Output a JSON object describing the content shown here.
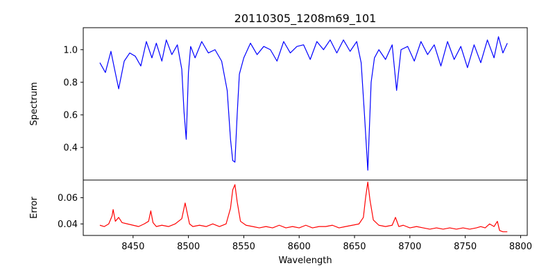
{
  "chart_data": [
    {
      "type": "line",
      "title": "20110305_1208m69_101",
      "ylabel": "Spectrum",
      "xlabel": "",
      "xlim": [
        8405,
        8806
      ],
      "ylim": [
        0.2,
        1.135
      ],
      "yticks": [
        0.4,
        0.6,
        0.8,
        1.0
      ],
      "yticklabels": [
        "0.4",
        "0.6",
        "0.8",
        "1.0"
      ],
      "color": "#0000ff",
      "series": [
        {
          "x": [
            8420,
            8425,
            8430,
            8433,
            8437,
            8442,
            8447,
            8452,
            8457,
            8462,
            8467,
            8471,
            8476,
            8480,
            8485,
            8490,
            8494,
            8496,
            8498,
            8500,
            8502,
            8506,
            8512,
            8518,
            8524,
            8530,
            8535,
            8538,
            8540,
            8542,
            8544,
            8546,
            8550,
            8556,
            8562,
            8568,
            8574,
            8580,
            8586,
            8592,
            8598,
            8604,
            8610,
            8616,
            8622,
            8628,
            8634,
            8640,
            8646,
            8652,
            8656,
            8659,
            8662,
            8665,
            8668,
            8672,
            8678,
            8684,
            8688,
            8692,
            8698,
            8704,
            8710,
            8716,
            8722,
            8728,
            8734,
            8740,
            8746,
            8752,
            8758,
            8764,
            8770,
            8776,
            8780,
            8784,
            8788
          ],
          "y": [
            0.92,
            0.86,
            0.99,
            0.89,
            0.76,
            0.93,
            0.98,
            0.96,
            0.9,
            1.05,
            0.95,
            1.04,
            0.93,
            1.06,
            0.97,
            1.03,
            0.88,
            0.62,
            0.45,
            0.86,
            1.02,
            0.95,
            1.05,
            0.98,
            1.0,
            0.93,
            0.75,
            0.45,
            0.32,
            0.31,
            0.6,
            0.85,
            0.95,
            1.04,
            0.97,
            1.02,
            1.0,
            0.93,
            1.05,
            0.98,
            1.02,
            1.03,
            0.94,
            1.05,
            1.0,
            1.06,
            0.98,
            1.06,
            0.99,
            1.05,
            0.92,
            0.6,
            0.26,
            0.8,
            0.95,
            1.0,
            0.94,
            1.03,
            0.75,
            1.0,
            1.02,
            0.93,
            1.05,
            0.97,
            1.03,
            0.9,
            1.05,
            0.94,
            1.02,
            0.89,
            1.03,
            0.92,
            1.06,
            0.95,
            1.08,
            0.98,
            1.04
          ]
        }
      ]
    },
    {
      "type": "line",
      "title": "",
      "ylabel": "Error",
      "xlabel": "Wavelength",
      "xlim": [
        8405,
        8806
      ],
      "ylim": [
        0.0312,
        0.0735
      ],
      "xticks": [
        8450,
        8500,
        8550,
        8600,
        8650,
        8700,
        8750,
        8800
      ],
      "xticklabels": [
        "8450",
        "8500",
        "8550",
        "8600",
        "8650",
        "8700",
        "8750",
        "8800"
      ],
      "yticks": [
        0.04,
        0.06
      ],
      "yticklabels": [
        "0.04",
        "0.06"
      ],
      "color": "#ff0000",
      "series": [
        {
          "x": [
            8420,
            8424,
            8428,
            8431,
            8432,
            8434,
            8437,
            8440,
            8445,
            8450,
            8455,
            8460,
            8464,
            8466,
            8468,
            8471,
            8476,
            8482,
            8488,
            8494,
            8497,
            8499,
            8501,
            8504,
            8510,
            8516,
            8522,
            8528,
            8534,
            8538,
            8540,
            8542,
            8544,
            8547,
            8552,
            8558,
            8564,
            8570,
            8576,
            8582,
            8588,
            8594,
            8600,
            8606,
            8612,
            8618,
            8624,
            8630,
            8636,
            8642,
            8648,
            8654,
            8658,
            8660,
            8662,
            8664,
            8667,
            8672,
            8678,
            8684,
            8687,
            8690,
            8694,
            8700,
            8706,
            8712,
            8718,
            8724,
            8730,
            8736,
            8742,
            8748,
            8754,
            8760,
            8764,
            8768,
            8772,
            8776,
            8779,
            8781,
            8784,
            8788
          ],
          "y": [
            0.039,
            0.038,
            0.04,
            0.046,
            0.051,
            0.042,
            0.045,
            0.041,
            0.04,
            0.039,
            0.038,
            0.04,
            0.042,
            0.05,
            0.041,
            0.038,
            0.039,
            0.038,
            0.04,
            0.044,
            0.056,
            0.048,
            0.04,
            0.038,
            0.039,
            0.038,
            0.04,
            0.038,
            0.04,
            0.052,
            0.066,
            0.07,
            0.057,
            0.042,
            0.039,
            0.038,
            0.037,
            0.038,
            0.037,
            0.039,
            0.037,
            0.038,
            0.037,
            0.039,
            0.037,
            0.038,
            0.038,
            0.039,
            0.037,
            0.038,
            0.039,
            0.04,
            0.045,
            0.06,
            0.072,
            0.058,
            0.043,
            0.039,
            0.038,
            0.039,
            0.045,
            0.038,
            0.039,
            0.037,
            0.038,
            0.037,
            0.036,
            0.037,
            0.036,
            0.037,
            0.036,
            0.037,
            0.036,
            0.037,
            0.038,
            0.037,
            0.04,
            0.038,
            0.042,
            0.035,
            0.034,
            0.034
          ]
        }
      ]
    }
  ]
}
